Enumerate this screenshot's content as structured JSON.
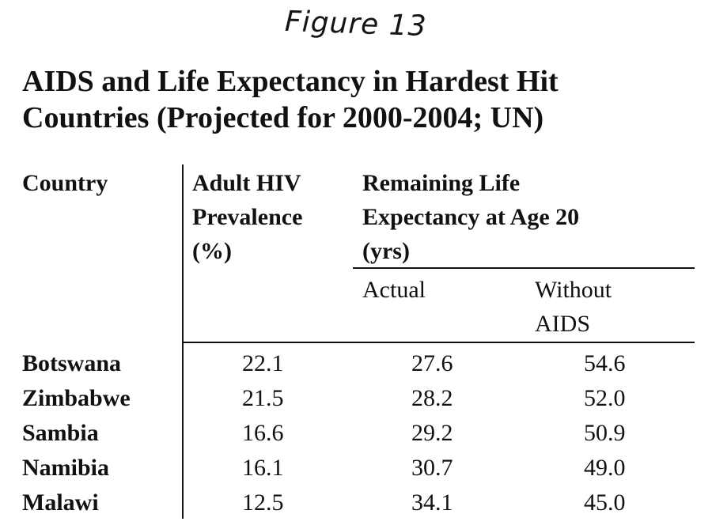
{
  "figure_label": "Figure 13",
  "title_line1": "AIDS and Life Expectancy in Hardest Hit",
  "title_line2": "Countries (Projected for 2000-2004; UN)",
  "headers": {
    "country": "Country",
    "hiv_line1": "Adult HIV",
    "hiv_line2": "Prevalence",
    "hiv_line3": "(%)",
    "life_line1": "Remaining Life",
    "life_line2": "Expectancy at Age 20",
    "life_line3": "(yrs)",
    "actual": "Actual",
    "without_line1": "Without",
    "without_line2": "AIDS"
  },
  "rows": [
    {
      "country": "Botswana",
      "hiv": "22.1",
      "actual": "27.6",
      "without": "54.6"
    },
    {
      "country": "Zimbabwe",
      "hiv": "21.5",
      "actual": "28.2",
      "without": "52.0"
    },
    {
      "country": "Sambia",
      "hiv": "16.6",
      "actual": "29.2",
      "without": "50.9"
    },
    {
      "country": "Namibia",
      "hiv": "16.1",
      "actual": "30.7",
      "without": "49.0"
    },
    {
      "country": "Malawi",
      "hiv": "12.5",
      "actual": "34.1",
      "without": "45.0"
    }
  ]
}
